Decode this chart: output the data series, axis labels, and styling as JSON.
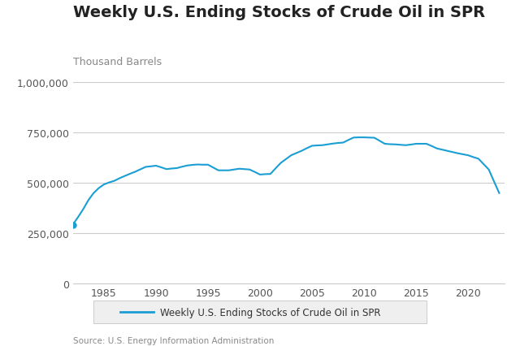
{
  "title": "Weekly U.S. Ending Stocks of Crude Oil in SPR",
  "ylabel": "Thousand Barrels",
  "source": "Source: U.S. Energy Information Administration",
  "legend_label": "Weekly U.S. Ending Stocks of Crude Oil in SPR",
  "line_color": "#1a9ed4",
  "ylim": [
    0,
    1000000
  ],
  "yticks": [
    0,
    250000,
    500000,
    750000,
    1000000
  ],
  "xticks": [
    1985,
    1990,
    1995,
    2000,
    2005,
    2010,
    2015,
    2020
  ],
  "background_color": "#ffffff",
  "plot_bg_color": "#ffffff",
  "title_fontsize": 14,
  "label_fontsize": 9,
  "tick_fontsize": 9,
  "grid_color": "#cccccc",
  "years": [
    1982.0,
    1982.5,
    1983.0,
    1983.5,
    1984.0,
    1984.5,
    1985.0,
    1985.5,
    1986.0,
    1986.5,
    1987.0,
    1987.5,
    1988.0,
    1988.5,
    1989.0,
    1989.5,
    1990.0,
    1990.5,
    1991.0,
    1991.5,
    1992.0,
    1992.5,
    1993.0,
    1993.5,
    1994.0,
    1994.5,
    1995.0,
    1995.5,
    1996.0,
    1996.5,
    1997.0,
    1997.5,
    1998.0,
    1998.5,
    1999.0,
    1999.5,
    2000.0,
    2000.5,
    2001.0,
    2001.5,
    2002.0,
    2002.5,
    2003.0,
    2003.5,
    2004.0,
    2004.5,
    2005.0,
    2005.5,
    2006.0,
    2006.5,
    2007.0,
    2007.5,
    2008.0,
    2008.5,
    2009.0,
    2009.5,
    2010.0,
    2010.5,
    2011.0,
    2011.5,
    2012.0,
    2012.5,
    2013.0,
    2013.5,
    2014.0,
    2014.5,
    2015.0,
    2015.5,
    2016.0,
    2016.5,
    2017.0,
    2017.5,
    2018.0,
    2018.5,
    2019.0,
    2019.5,
    2020.0,
    2020.5,
    2021.0,
    2021.5,
    2022.0,
    2022.5,
    2023.0
  ],
  "values": [
    293000,
    330000,
    370000,
    415000,
    450000,
    475000,
    493000,
    503000,
    511000,
    524000,
    535000,
    546000,
    556000,
    568000,
    580000,
    583000,
    586000,
    578000,
    569000,
    572000,
    574000,
    581000,
    587000,
    590000,
    592000,
    591000,
    591000,
    577000,
    563000,
    563000,
    563000,
    567000,
    571000,
    569000,
    567000,
    555000,
    542000,
    544000,
    545000,
    573000,
    600000,
    619000,
    638000,
    649000,
    660000,
    673000,
    685000,
    687000,
    688000,
    692000,
    696000,
    699000,
    701000,
    714000,
    726000,
    727000,
    727000,
    726000,
    725000,
    710000,
    695000,
    693000,
    692000,
    690000,
    688000,
    691000,
    695000,
    695000,
    695000,
    684000,
    672000,
    666000,
    660000,
    654000,
    648000,
    643000,
    638000,
    629000,
    621000,
    594000,
    567000,
    508000,
    450000
  ]
}
